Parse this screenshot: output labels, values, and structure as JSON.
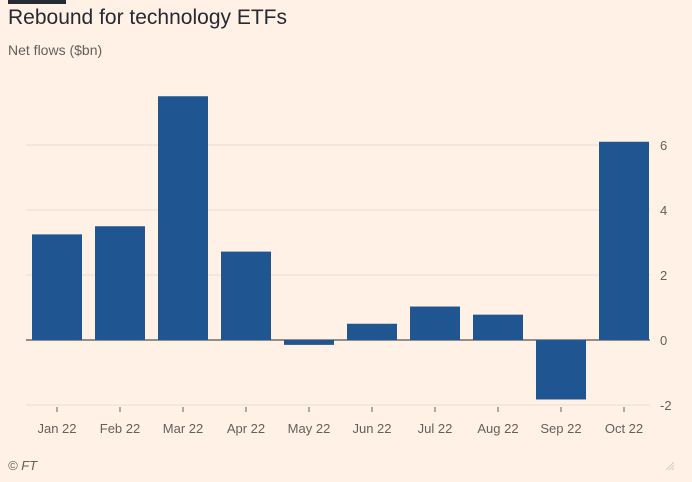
{
  "header": {
    "title": "Rebound for technology ETFs",
    "subtitle": "Net flows ($bn)"
  },
  "footer": {
    "source": "© FT"
  },
  "colors": {
    "background": "#fff1e5",
    "bar": "#1f5692",
    "grid": "#e8dcd2",
    "zero_line": "#262a33",
    "text": "#262a33",
    "muted_text": "#66605c"
  },
  "chart_data": {
    "type": "bar",
    "title": "Rebound for technology ETFs",
    "subtitle": "Net flows ($bn)",
    "xlabel": "",
    "ylabel": "",
    "categories": [
      "Jan 22",
      "Feb 22",
      "Mar 22",
      "Apr 22",
      "May 22",
      "Jun 22",
      "Jul 22",
      "Aug 22",
      "Sep 22",
      "Oct 22"
    ],
    "values": [
      3.25,
      3.5,
      7.5,
      2.72,
      -0.15,
      0.5,
      1.03,
      0.78,
      -1.83,
      6.1
    ],
    "ylim": [
      -2,
      8
    ],
    "yticks": [
      -2,
      0,
      2,
      4,
      6
    ],
    "y_axis_position": "right",
    "grid": true,
    "legend": "none"
  }
}
